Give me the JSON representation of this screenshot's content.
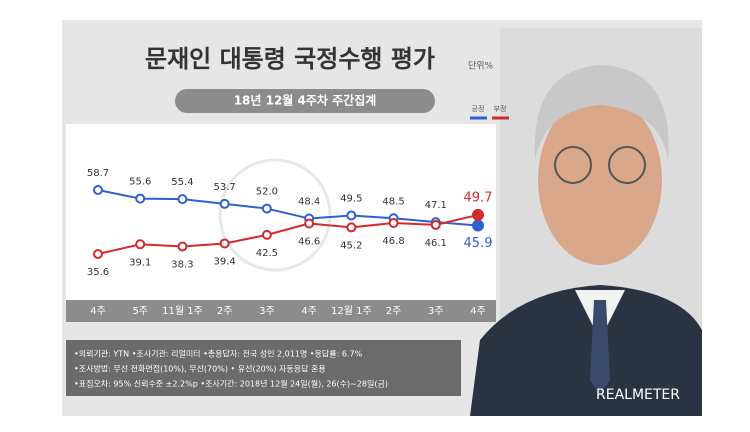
{
  "chart_data": {
    "type": "line",
    "title": "문재인 대통령 국정수행 평가",
    "unit": "단위%",
    "subtitle": "18년 12월 4주차 주간집계",
    "categories": [
      "4주",
      "5주",
      "11월 1주",
      "2주",
      "3주",
      "4주",
      "12월 1주",
      "2주",
      "3주",
      "4주"
    ],
    "series": [
      {
        "name": "긍정",
        "color": "#2f5fd0",
        "values": [
          58.7,
          55.6,
          55.4,
          53.7,
          52.0,
          48.4,
          49.5,
          48.5,
          47.1,
          45.9
        ],
        "value_labels": [
          "58.7",
          "55.6",
          "55.4",
          "53.7",
          "52.0",
          "48.4",
          "49.5",
          "48.5",
          "47.1",
          "45.9"
        ]
      },
      {
        "name": "부정",
        "color": "#d42a2a",
        "values": [
          35.6,
          39.1,
          38.3,
          39.4,
          42.5,
          46.6,
          45.2,
          46.8,
          46.1,
          49.7
        ],
        "value_labels": [
          "35.6",
          "39.1",
          "38.3",
          "39.4",
          "42.5",
          "46.6",
          "45.2",
          "46.8",
          "46.1",
          "49.7"
        ]
      }
    ],
    "notes": [
      "•의뢰기관: YTN •조사기관: 리얼미터 •총응답자: 전국 성인 2,011명 •응답률: 6.7%",
      "•조사방법: 무선 전화면접(10%), 무선(70%) • 유선(20%) 자동응답 혼용",
      "•표집오차: 95% 신뢰수준 ±2.2%p •조사기간: 2018년 12월 24일(월), 26(수)~28일(금)"
    ],
    "brand": "REALMETER"
  }
}
